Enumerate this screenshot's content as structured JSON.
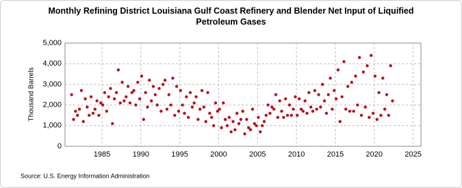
{
  "chart_data": {
    "type": "scatter",
    "title": "Monthly Refining District Louisiana Gulf Coast Refinery and Blender Net Input of Liquified Petroleum Gases",
    "y_label": "Thousand Barrels",
    "source": "Source: U.S. Energy Information Administration",
    "color": "#b5121b",
    "grid": true,
    "xlim": [
      1980.25,
      2026
    ],
    "ylim": [
      0,
      5000
    ],
    "xticks": [
      1985,
      1990,
      1995,
      2000,
      2005,
      2010,
      2015,
      2020,
      2025
    ],
    "yticks": [
      0,
      {
        "value": 1000,
        "label": "1,000"
      },
      {
        "value": 2000,
        "label": "2,000"
      },
      {
        "value": 3000,
        "label": "3,000"
      },
      {
        "value": 4000,
        "label": "4,000"
      },
      {
        "value": 5000,
        "label": "5,000"
      }
    ],
    "x": [
      1981.1,
      1981.35,
      1981.6,
      1981.85,
      1982.1,
      1982.35,
      1982.6,
      1982.85,
      1983.1,
      1983.35,
      1983.6,
      1983.85,
      1984.1,
      1984.35,
      1984.6,
      1984.85,
      1985.1,
      1985.35,
      1985.6,
      1985.85,
      1986.1,
      1986.35,
      1986.6,
      1986.85,
      1987.1,
      1987.35,
      1987.6,
      1987.85,
      1988.1,
      1988.35,
      1988.6,
      1988.85,
      1989.1,
      1989.35,
      1989.6,
      1989.85,
      1990.1,
      1990.35,
      1990.6,
      1990.85,
      1991.1,
      1991.35,
      1991.6,
      1991.85,
      1992.1,
      1992.35,
      1992.6,
      1992.85,
      1993.1,
      1993.35,
      1993.6,
      1993.85,
      1994.1,
      1994.35,
      1994.6,
      1994.85,
      1995.1,
      1995.35,
      1995.6,
      1995.85,
      1996.1,
      1996.35,
      1996.6,
      1996.85,
      1997.1,
      1997.35,
      1997.6,
      1997.85,
      1998.1,
      1998.35,
      1998.6,
      1998.85,
      1999.1,
      1999.35,
      1999.6,
      1999.85,
      2000.1,
      2000.35,
      2000.6,
      2000.85,
      2001.1,
      2001.35,
      2001.6,
      2001.85,
      2002.1,
      2002.35,
      2002.6,
      2002.85,
      2003.1,
      2003.35,
      2003.6,
      2003.85,
      2004.1,
      2004.35,
      2004.6,
      2004.85,
      2005.1,
      2005.35,
      2005.6,
      2005.85,
      2006.1,
      2006.35,
      2006.6,
      2006.85,
      2007.1,
      2007.35,
      2007.6,
      2007.85,
      2008.1,
      2008.35,
      2008.6,
      2008.85,
      2009.1,
      2009.35,
      2009.6,
      2009.85,
      2010.1,
      2010.35,
      2010.6,
      2010.85,
      2011.1,
      2011.35,
      2011.6,
      2011.85,
      2012.1,
      2012.35,
      2012.6,
      2012.85,
      2013.1,
      2013.35,
      2013.6,
      2013.85,
      2014.1,
      2014.35,
      2014.6,
      2014.85,
      2015.1,
      2015.35,
      2015.6,
      2015.85,
      2016.1,
      2016.35,
      2016.6,
      2016.85,
      2017.1,
      2017.35,
      2017.6,
      2017.85,
      2018.1,
      2018.35,
      2018.6,
      2018.85,
      2019.1,
      2019.35,
      2019.6,
      2019.85,
      2020.1,
      2020.35,
      2020.6,
      2020.85,
      2021.1,
      2021.35,
      2021.6,
      2021.85,
      2022.1,
      2022.35
    ],
    "values": [
      2500,
      1300,
      1700,
      1500,
      1800,
      2700,
      1200,
      2300,
      1900,
      1500,
      2400,
      1600,
      1800,
      2200,
      1500,
      2100,
      2000,
      2600,
      1700,
      2400,
      2800,
      1100,
      2300,
      2600,
      3700,
      2100,
      3100,
      2200,
      2400,
      2900,
      2100,
      2600,
      2700,
      2000,
      3100,
      2300,
      3400,
      1300,
      2600,
      1900,
      3200,
      2200,
      2900,
      2500,
      2000,
      2800,
      1700,
      3000,
      3200,
      1800,
      2500,
      2000,
      3300,
      1500,
      2900,
      1700,
      2700,
      2000,
      1600,
      2400,
      1400,
      2600,
      1900,
      2100,
      2400,
      1300,
      1800,
      2700,
      1900,
      1200,
      2600,
      1600,
      1400,
      1000,
      2100,
      1700,
      1800,
      900,
      2100,
      1300,
      1000,
      1400,
      700,
      1200,
      800,
      1600,
      1100,
      1300,
      1700,
      600,
      1300,
      900,
      800,
      1800,
      1100,
      1000,
      1400,
      700,
      1000,
      1200,
      1500,
      2000,
      1600,
      1900,
      1800,
      2500,
      1400,
      2200,
      1700,
      1400,
      2300,
      1500,
      2000,
      1500,
      1800,
      2400,
      1500,
      2300,
      1800,
      1700,
      2200,
      1600,
      2600,
      1900,
      1700,
      2700,
      1800,
      2500,
      1900,
      3000,
      2200,
      1600,
      2500,
      3300,
      1800,
      2700,
      2300,
      3700,
      1200,
      2400,
      4100,
      1800,
      2900,
      1700,
      3100,
      1700,
      3400,
      2000,
      4300,
      1500,
      3600,
      1900,
      3900,
      1400,
      4400,
      1600,
      3400,
      1300,
      2600,
      1500,
      3300,
      1800,
      2500,
      1500,
      3900,
      2200
    ]
  }
}
